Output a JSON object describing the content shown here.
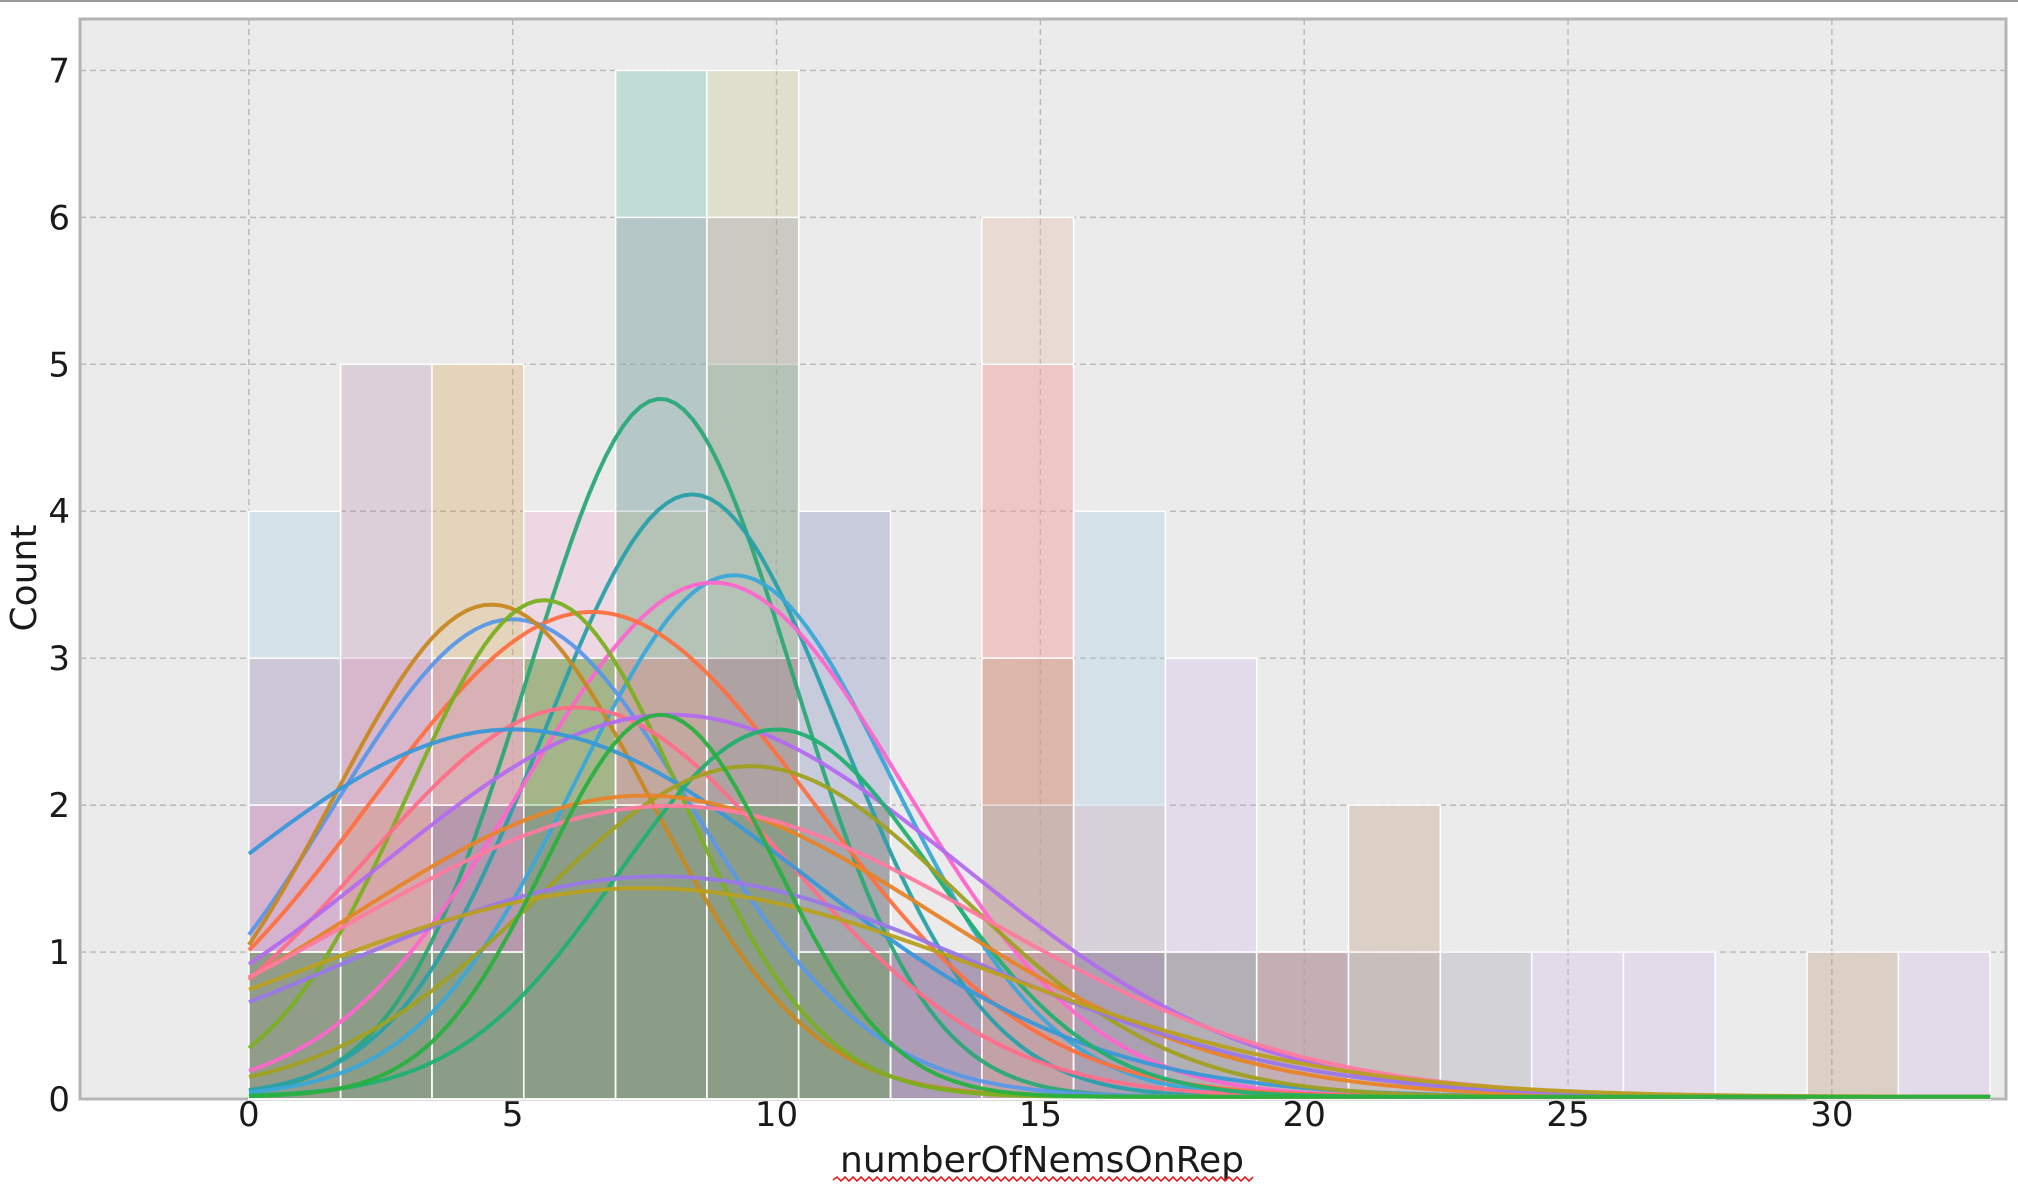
{
  "chart_data": {
    "type": "bar",
    "xlabel": "numberOfNemsOnRep",
    "ylabel": "Count",
    "xlim": [
      -3.2,
      33.3
    ],
    "ylim": [
      0,
      7.35
    ],
    "x_ticks": [
      0,
      5,
      10,
      15,
      20,
      25,
      30
    ],
    "y_ticks": [
      0,
      1,
      2,
      3,
      4,
      5,
      6,
      7
    ],
    "grid": true,
    "bin_edges": [
      0,
      1.74,
      3.47,
      5.21,
      6.95,
      8.68,
      10.42,
      12.16,
      13.89,
      15.63,
      17.37,
      19.1,
      20.84,
      22.58,
      24.31,
      26.05,
      27.79,
      29.53,
      31.26,
      33.0
    ],
    "series": [
      {
        "color": "#5fb8a0",
        "counts": [
          1,
          0,
          2,
          3,
          7,
          5,
          2,
          0,
          0,
          0,
          1,
          0,
          0,
          0,
          0,
          0,
          0,
          0,
          0
        ]
      },
      {
        "color": "#c2c28a",
        "counts": [
          0,
          1,
          1,
          3,
          4,
          7,
          2,
          1,
          0,
          0,
          0,
          0,
          0,
          0,
          0,
          0,
          0,
          0,
          0
        ]
      },
      {
        "color": "#e8b4a0",
        "counts": [
          2,
          1,
          3,
          2,
          3,
          2,
          1,
          1,
          6,
          1,
          0,
          0,
          0,
          0,
          0,
          0,
          0,
          0,
          0
        ]
      },
      {
        "color": "#f59aa0",
        "counts": [
          1,
          3,
          2,
          2,
          2,
          3,
          1,
          0,
          5,
          2,
          0,
          1,
          0,
          0,
          0,
          0,
          0,
          0,
          0
        ]
      },
      {
        "color": "#9ec9e6",
        "counts": [
          4,
          2,
          3,
          2,
          2,
          2,
          1,
          1,
          2,
          4,
          1,
          0,
          0,
          0,
          0,
          0,
          0,
          0,
          0
        ]
      },
      {
        "color": "#d2b4e8",
        "counts": [
          2,
          3,
          2,
          2,
          2,
          2,
          1,
          1,
          1,
          1,
          3,
          1,
          0,
          0,
          1,
          1,
          0,
          0,
          1
        ]
      },
      {
        "color": "#b89070",
        "counts": [
          1,
          2,
          2,
          2,
          3,
          2,
          2,
          1,
          3,
          1,
          1,
          1,
          2,
          0,
          0,
          0,
          0,
          1,
          0
        ]
      },
      {
        "color": "#b890b0",
        "counts": [
          3,
          5,
          3,
          2,
          2,
          2,
          1,
          1,
          1,
          0,
          0,
          0,
          0,
          0,
          0,
          0,
          0,
          0,
          0
        ]
      },
      {
        "color": "#d4a050",
        "counts": [
          1,
          2,
          5,
          3,
          3,
          3,
          1,
          0,
          1,
          0,
          0,
          0,
          0,
          0,
          0,
          0,
          0,
          0,
          0
        ]
      },
      {
        "color": "#f0a8d0",
        "counts": [
          2,
          2,
          3,
          4,
          3,
          2,
          1,
          1,
          1,
          0,
          0,
          0,
          0,
          0,
          0,
          0,
          0,
          0,
          0
        ]
      },
      {
        "color": "#7880b8",
        "counts": [
          1,
          1,
          2,
          2,
          2,
          3,
          4,
          1,
          0,
          1,
          0,
          0,
          0,
          0,
          0,
          0,
          0,
          0,
          0
        ]
      },
      {
        "color": "#9c9ca8",
        "counts": [
          0,
          1,
          1,
          2,
          6,
          6,
          2,
          1,
          1,
          1,
          1,
          1,
          1,
          1,
          0,
          0,
          0,
          0,
          0
        ]
      },
      {
        "color": "#3aa838",
        "counts": [
          1,
          1,
          1,
          3,
          2,
          2,
          1,
          0,
          0,
          0,
          0,
          0,
          0,
          0,
          0,
          0,
          0,
          0,
          0
        ]
      }
    ],
    "kde": [
      {
        "color": "#2ca878",
        "peak_x": 7.8,
        "peak_y": 4.75,
        "sd": 2.5
      },
      {
        "color": "#2aa0a8",
        "peak_x": 8.4,
        "peak_y": 4.1,
        "sd": 2.8
      },
      {
        "color": "#3aa8d8",
        "peak_x": 9.2,
        "peak_y": 3.55,
        "sd": 3.0
      },
      {
        "color": "#ff66cc",
        "peak_x": 8.8,
        "peak_y": 3.5,
        "sd": 3.6
      },
      {
        "color": "#ff7040",
        "peak_x": 6.5,
        "peak_y": 3.3,
        "sd": 4.2
      },
      {
        "color": "#5a98e8",
        "peak_x": 5.0,
        "peak_y": 3.25,
        "sd": 3.4
      },
      {
        "color": "#c88820",
        "peak_x": 4.6,
        "peak_y": 3.35,
        "sd": 3.0
      },
      {
        "color": "#7ab020",
        "peak_x": 5.6,
        "peak_y": 3.38,
        "sd": 2.6
      },
      {
        "color": "#ff6e88",
        "peak_x": 6.2,
        "peak_y": 2.65,
        "sd": 4.0
      },
      {
        "color": "#b46cf0",
        "peak_x": 8.0,
        "peak_y": 2.6,
        "sd": 5.5
      },
      {
        "color": "#3a98d8",
        "peak_x": 5.0,
        "peak_y": 2.5,
        "sd": 5.5
      },
      {
        "color": "#20b070",
        "peak_x": 10.0,
        "peak_y": 2.5,
        "sd": 3.0
      },
      {
        "color": "#a0a020",
        "peak_x": 9.5,
        "peak_y": 2.25,
        "sd": 4.0
      },
      {
        "color": "#e88428",
        "peak_x": 7.5,
        "peak_y": 2.05,
        "sd": 5.5
      },
      {
        "color": "#ff7aa0",
        "peak_x": 8.0,
        "peak_y": 1.98,
        "sd": 6.0
      },
      {
        "color": "#9a78e8",
        "peak_x": 7.8,
        "peak_y": 1.5,
        "sd": 6.0
      },
      {
        "color": "#b8a020",
        "peak_x": 7.5,
        "peak_y": 1.42,
        "sd": 6.5
      },
      {
        "color": "#28b040",
        "peak_x": 7.8,
        "peak_y": 2.6,
        "sd": 2.2
      }
    ]
  }
}
